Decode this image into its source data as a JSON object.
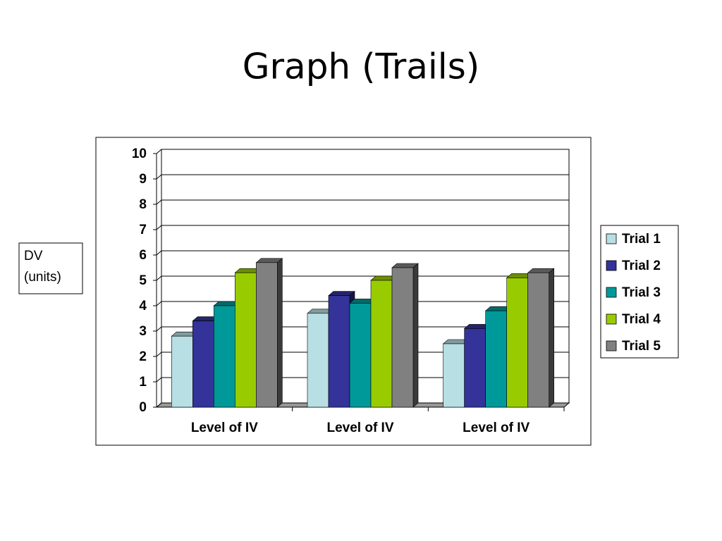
{
  "chart_data": {
    "type": "bar3d",
    "title": "Graph (Trails)",
    "y_label": "DV (units)",
    "categories": [
      "Level of IV",
      "Level of IV",
      "Level of IV"
    ],
    "series": [
      {
        "name": "Trial 1",
        "color": "#b8dfe3",
        "values": [
          2.8,
          3.7,
          2.5
        ]
      },
      {
        "name": "Trial 2",
        "color": "#333399",
        "values": [
          3.4,
          4.4,
          3.1
        ]
      },
      {
        "name": "Trial 3",
        "color": "#009999",
        "values": [
          4.0,
          4.1,
          3.8
        ]
      },
      {
        "name": "Trial 4",
        "color": "#99cc00",
        "values": [
          5.3,
          5.0,
          5.1
        ]
      },
      {
        "name": "Trial 5",
        "color": "#808080",
        "values": [
          5.7,
          5.5,
          5.3
        ]
      }
    ],
    "ylim": [
      0,
      10
    ],
    "yticks": [
      0,
      1,
      2,
      3,
      4,
      5,
      6,
      7,
      8,
      9,
      10
    ],
    "grid": true,
    "legend": "right"
  }
}
